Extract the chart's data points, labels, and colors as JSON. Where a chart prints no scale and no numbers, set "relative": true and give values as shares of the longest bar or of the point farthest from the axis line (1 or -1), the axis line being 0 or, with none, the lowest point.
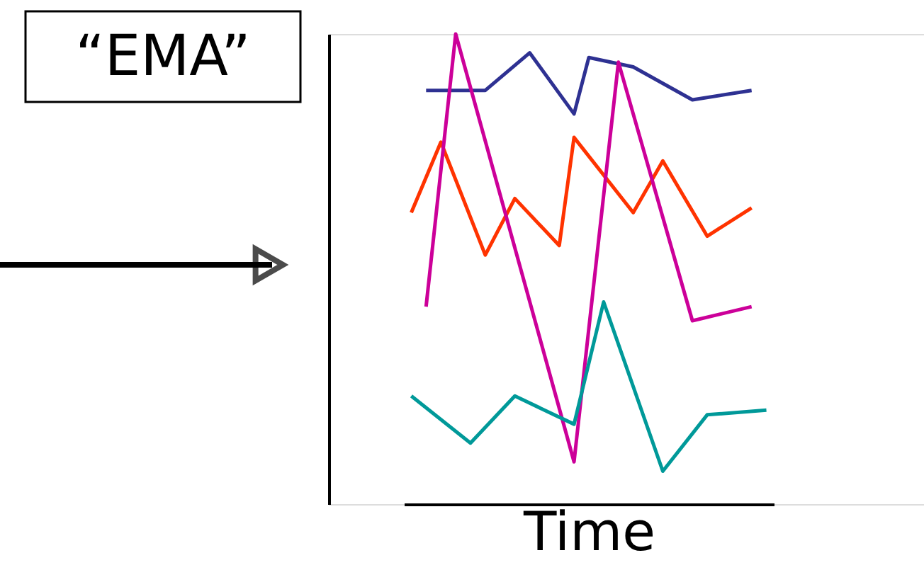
{
  "chart_data": {
    "type": "line",
    "title": "“EMA”",
    "xlabel": "Time",
    "relative": true,
    "tick_labels": false,
    "grid": false,
    "legend": false,
    "marker": "none",
    "line_style": "solid",
    "categories": [
      null,
      null,
      null,
      null,
      null,
      null,
      null,
      null,
      null,
      null,
      null,
      null,
      null,
      null,
      null,
      null,
      null,
      null,
      null,
      null,
      null,
      null,
      null,
      null,
      null
    ],
    "series": [
      {
        "color": "#2e3192",
        "values": [
          null,
          0.88,
          null,
          null,
          null,
          0.88,
          null,
          null,
          0.96,
          null,
          null,
          0.83,
          0.95,
          null,
          null,
          0.93,
          null,
          null,
          null,
          0.86,
          null,
          null,
          null,
          0.88,
          null
        ]
      },
      {
        "color": "#ff3300",
        "values": [
          0.62,
          null,
          0.77,
          null,
          null,
          0.53,
          null,
          0.65,
          null,
          null,
          0.55,
          0.78,
          null,
          null,
          null,
          0.62,
          null,
          0.73,
          null,
          null,
          0.57,
          null,
          null,
          0.63,
          null
        ]
      },
      {
        "color": "#cc0099",
        "values": [
          null,
          0.42,
          null,
          1.0,
          null,
          null,
          null,
          null,
          null,
          null,
          null,
          0.09,
          null,
          null,
          0.94,
          null,
          null,
          null,
          null,
          0.39,
          null,
          null,
          null,
          0.42,
          null
        ]
      },
      {
        "color": "#009999",
        "values": [
          0.23,
          null,
          null,
          null,
          0.13,
          null,
          null,
          0.23,
          null,
          null,
          null,
          0.17,
          null,
          0.43,
          null,
          null,
          null,
          0.07,
          null,
          null,
          0.19,
          null,
          null,
          null,
          0.2
        ]
      }
    ]
  }
}
